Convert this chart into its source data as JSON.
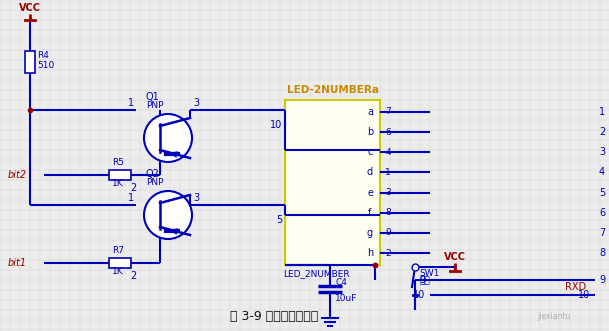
{
  "bg_color": "#ececec",
  "grid_color": "#d0d0d0",
  "wire_color": "#0000bb",
  "dark_wire": "#000080",
  "red_color": "#990000",
  "yellow_bg": "#fffff0",
  "yellow_border": "#cccc00",
  "title": "图 3-9 数码管显示电路",
  "pin_labels_left": [
    "a",
    "b",
    "c",
    "d",
    "e",
    "f",
    "g",
    "h"
  ],
  "pin_numbers_left": [
    7,
    6,
    4,
    1,
    3,
    8,
    9,
    2
  ],
  "pin_numbers_right": [
    1,
    2,
    3,
    4,
    5,
    6,
    7,
    8
  ]
}
